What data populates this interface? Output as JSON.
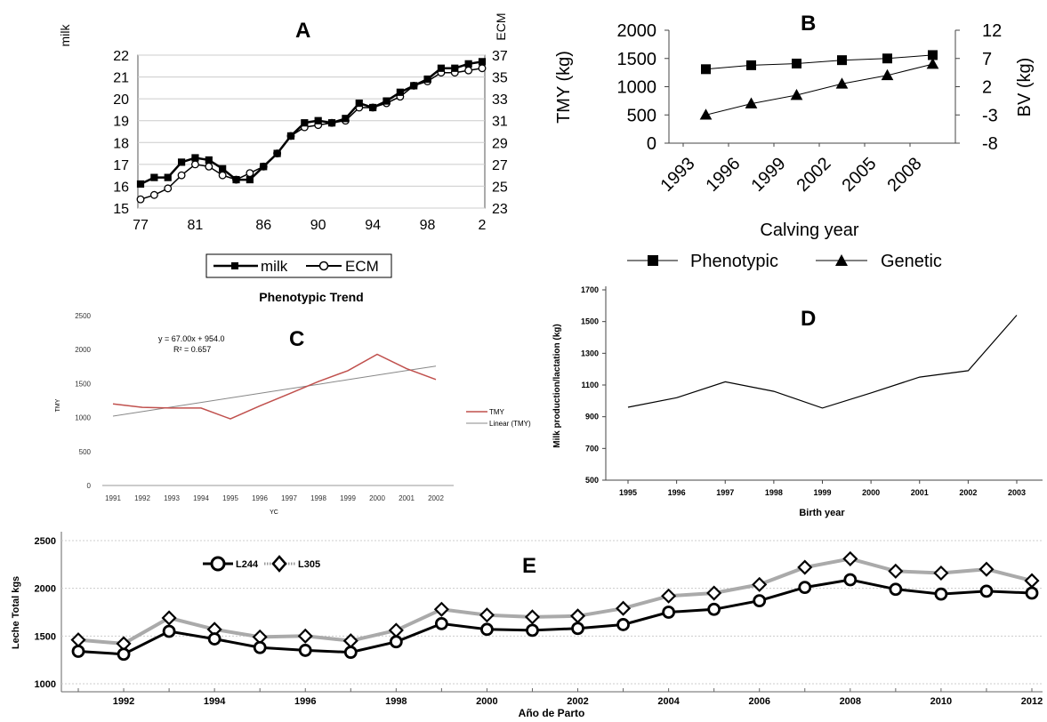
{
  "panels": {
    "A": {
      "letter": "A"
    },
    "B": {
      "letter": "B"
    },
    "C": {
      "letter": "C",
      "title": "Phenotypic Trend",
      "equation": "y = 67.00x + 954.0",
      "r2": "R² = 0.657"
    },
    "D": {
      "letter": "D"
    },
    "E": {
      "letter": "E"
    }
  },
  "chart_data": [
    {
      "id": "A",
      "type": "line",
      "x_tick_labels": [
        "77",
        "81",
        "86",
        "90",
        "94",
        "98",
        "2"
      ],
      "ylabel_left": "milk",
      "ylabel_right": "ECM",
      "ylim_left": [
        15,
        22
      ],
      "ylim_right": [
        23,
        37
      ],
      "yticks_left": [
        15,
        16,
        17,
        18,
        19,
        20,
        21,
        22
      ],
      "yticks_right": [
        23,
        25,
        27,
        29,
        31,
        33,
        35,
        37
      ],
      "x_years": [
        1977,
        1978,
        1979,
        1980,
        1981,
        1982,
        1983,
        1984,
        1985,
        1986,
        1987,
        1988,
        1989,
        1990,
        1991,
        1992,
        1993,
        1994,
        1995,
        1996,
        1997,
        1998,
        1999,
        2000,
        2001,
        2002
      ],
      "series": [
        {
          "name": "milk",
          "marker": "square",
          "values": [
            16.1,
            16.4,
            16.4,
            17.1,
            17.3,
            17.2,
            16.8,
            16.3,
            16.3,
            16.9,
            17.5,
            18.3,
            18.9,
            19.0,
            18.9,
            19.1,
            19.8,
            19.6,
            19.9,
            20.3,
            20.6,
            20.9,
            21.4,
            21.4,
            21.6,
            21.7
          ]
        },
        {
          "name": "ECM",
          "marker": "circle",
          "values": [
            15.4,
            15.6,
            15.9,
            16.5,
            17.0,
            16.9,
            16.5,
            16.3,
            16.6,
            16.9,
            17.5,
            18.3,
            18.7,
            18.8,
            18.9,
            19.0,
            19.6,
            19.6,
            19.8,
            20.1,
            20.6,
            20.8,
            21.2,
            21.2,
            21.3,
            21.4
          ]
        }
      ],
      "legend": "bottom"
    },
    {
      "id": "B",
      "type": "line",
      "categories": [
        "1993",
        "1996",
        "1999",
        "2002",
        "2005",
        "2008"
      ],
      "xlabel": "Calving year",
      "ylabel_left": "TMY (kg)",
      "ylabel_right": "BV (kg)",
      "ylim_left": [
        0,
        2000
      ],
      "ylim_right": [
        -8,
        12
      ],
      "yticks_left": [
        0,
        500,
        1000,
        1500,
        2000
      ],
      "yticks_right": [
        -8,
        -3,
        2,
        7,
        12
      ],
      "series": [
        {
          "name": "Phenotypic",
          "marker": "square",
          "axis": "left",
          "x": [
            1994.5,
            1997.5,
            2000.5,
            2003.5,
            2006.5,
            2009.5
          ],
          "values": [
            1310,
            1380,
            1410,
            1470,
            1500,
            1560
          ]
        },
        {
          "name": "Genetic",
          "marker": "triangle",
          "axis": "right",
          "x": [
            1994.5,
            1997.5,
            2000.5,
            2003.5,
            2006.5,
            2009.5
          ],
          "values": [
            -3.0,
            -1.0,
            0.5,
            2.5,
            4.0,
            6.0
          ]
        }
      ],
      "legend": "bottom"
    },
    {
      "id": "C",
      "type": "line",
      "categories": [
        "1991",
        "1992",
        "1993",
        "1994",
        "1995",
        "1996",
        "1997",
        "1998",
        "1999",
        "2000",
        "2001",
        "2002"
      ],
      "xlabel": "YC",
      "ylabel": "TMY",
      "ylim": [
        0,
        2500
      ],
      "yticks": [
        0,
        500,
        1000,
        1500,
        2000,
        2500
      ],
      "series": [
        {
          "name": "TMY",
          "color": "#c0504d",
          "values": [
            1200,
            1150,
            1140,
            1140,
            980,
            1170,
            1350,
            1530,
            1690,
            1930,
            1720,
            1560
          ]
        },
        {
          "name": "Linear (TMY)",
          "color": "#888888",
          "values": [
            1021,
            1088,
            1155,
            1222,
            1289,
            1356,
            1423,
            1490,
            1557,
            1624,
            1691,
            1758
          ]
        }
      ],
      "legend": "right"
    },
    {
      "id": "D",
      "type": "line",
      "categories": [
        "1995",
        "1996",
        "1997",
        "1998",
        "1999",
        "2000",
        "2001",
        "2002",
        "2003"
      ],
      "xlabel": "Birth year",
      "ylabel": "Milk production/lactation (kg)",
      "ylim": [
        500,
        1700
      ],
      "yticks": [
        500,
        700,
        900,
        1100,
        1300,
        1500,
        1700
      ],
      "values": [
        960,
        1020,
        1120,
        1060,
        955,
        1050,
        1150,
        1190,
        1540
      ]
    },
    {
      "id": "E",
      "type": "line",
      "x": [
        1991,
        1992,
        1993,
        1994,
        1995,
        1996,
        1997,
        1998,
        1999,
        2000,
        2001,
        2002,
        2003,
        2004,
        2005,
        2006,
        2007,
        2008,
        2009,
        2010,
        2011,
        2012
      ],
      "x_tick_labels": [
        "1992",
        "1994",
        "1996",
        "1998",
        "2000",
        "2002",
        "2004",
        "2006",
        "2008",
        "2010",
        "2012"
      ],
      "xlabel": "Año de Parto",
      "ylabel": "Leche Total kgs",
      "ylim": [
        1000,
        2500
      ],
      "yticks": [
        1000,
        1500,
        2000,
        2500
      ],
      "series": [
        {
          "name": "L244",
          "marker": "circle",
          "values": [
            1340,
            1310,
            1550,
            1470,
            1380,
            1350,
            1330,
            1440,
            1630,
            1570,
            1560,
            1580,
            1620,
            1750,
            1780,
            1870,
            2010,
            2090,
            1990,
            1940,
            1970,
            1950
          ]
        },
        {
          "name": "L305",
          "marker": "diamond",
          "values": [
            1460,
            1420,
            1690,
            1570,
            1490,
            1500,
            1450,
            1560,
            1780,
            1720,
            1700,
            1710,
            1790,
            1920,
            1950,
            2040,
            2220,
            2310,
            2180,
            2160,
            2200,
            2080
          ]
        }
      ],
      "legend": "top-left"
    }
  ]
}
